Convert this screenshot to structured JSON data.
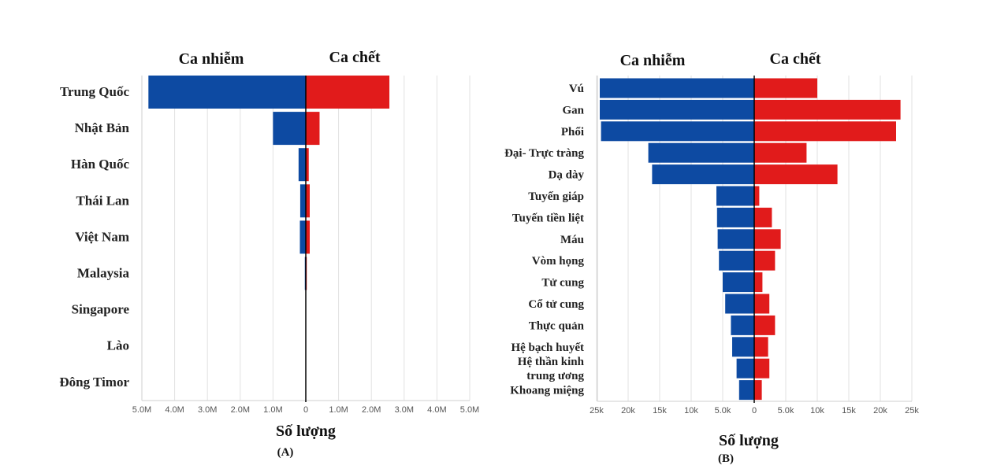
{
  "chart_data": [
    {
      "type": "bar",
      "orientation": "horizontal-butterfly",
      "panel_label": "(A)",
      "left_header": "Ca nhiễm",
      "right_header": "Ca chết",
      "xlabel": "Số lượng",
      "xlim": [
        -5000000,
        5000000
      ],
      "tick_labels": [
        "5.0M",
        "4.0M",
        "3.0M",
        "2.0M",
        "1.0M",
        "0",
        "1.0M",
        "2.0M",
        "3.0M",
        "4.0M",
        "5.0M"
      ],
      "categories": [
        "Trung Quốc",
        "Nhật Bản",
        "Hàn Quốc",
        "Thái Lan",
        "Việt Nam",
        "Malaysia",
        "Singapore",
        "Lào",
        "Đông Timor"
      ],
      "series": [
        {
          "name": "Ca nhiễm",
          "color": "#0d4aa2",
          "values": [
            4800000,
            1000000,
            220000,
            170000,
            180000,
            30000,
            10000,
            8000,
            2000
          ]
        },
        {
          "name": "Ca chết",
          "color": "#e11b1b",
          "values": [
            2550000,
            420000,
            90000,
            120000,
            120000,
            30000,
            5000,
            3000,
            1000
          ]
        }
      ]
    },
    {
      "type": "bar",
      "orientation": "horizontal-butterfly",
      "panel_label": "(B)",
      "left_header": "Ca nhiễm",
      "right_header": "Ca chết",
      "xlabel": "Số lượng",
      "xlim": [
        -25000,
        25000
      ],
      "tick_labels": [
        "25k",
        "20k",
        "15k",
        "10k",
        "5.0k",
        "0",
        "5.0k",
        "10k",
        "15k",
        "20k",
        "25k"
      ],
      "categories": [
        "Vú",
        "Gan",
        "Phổi",
        "Đại- Trực tràng",
        "Dạ dày",
        "Tuyến giáp",
        "Tuyến tiền liệt",
        "Máu",
        "Vòm họng",
        "Tử cung",
        "Cổ tử cung",
        "Thực quản",
        "Hệ bạch huyết",
        "Hệ thần kinh trung ương",
        "Khoang miệng"
      ],
      "series": [
        {
          "name": "Ca nhiễm",
          "color": "#0d4aa2",
          "values": [
            24500,
            24500,
            24300,
            16800,
            16200,
            6000,
            5900,
            5800,
            5600,
            5000,
            4600,
            3700,
            3500,
            2800,
            2400
          ]
        },
        {
          "name": "Ca chết",
          "color": "#e11b1b",
          "values": [
            10000,
            23200,
            22500,
            8300,
            13200,
            800,
            2800,
            4200,
            3300,
            1300,
            2400,
            3300,
            2200,
            2400,
            1200
          ]
        }
      ]
    }
  ]
}
